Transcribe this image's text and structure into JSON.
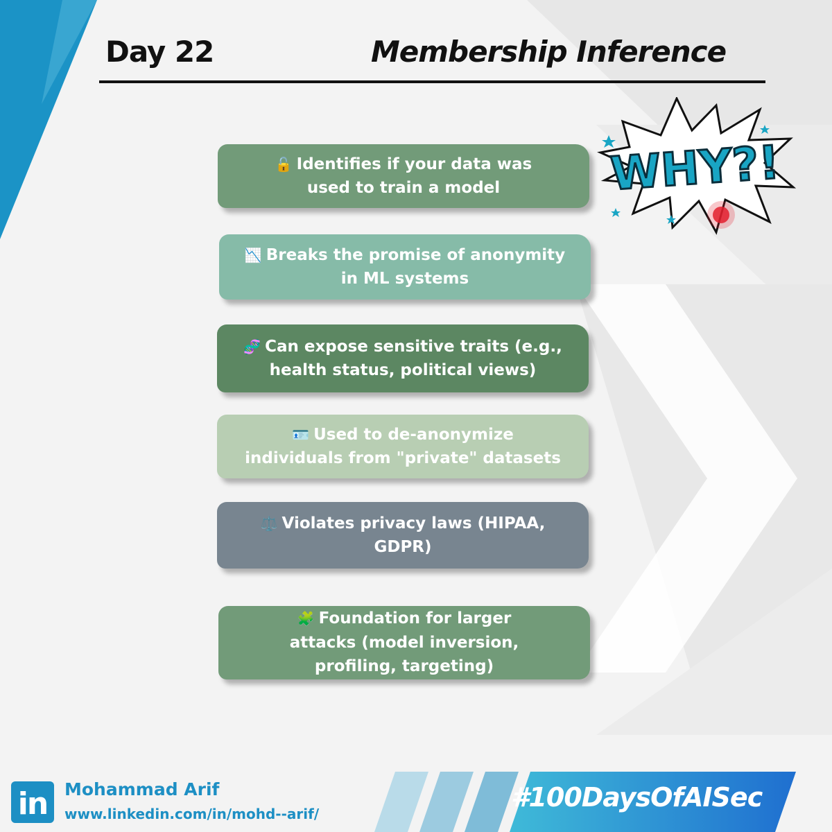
{
  "header": {
    "day_label": "Day 22",
    "title": "Membership Inference"
  },
  "badge": {
    "text": "WHY?!",
    "icon": "comic-burst-icon"
  },
  "cards": [
    {
      "icon": "🔓",
      "icon_name": "unlocked-padlock-icon",
      "text": "Identifies if your data was used to train a model",
      "color": "#729b79"
    },
    {
      "icon": "📉",
      "icon_name": "chart-decreasing-icon",
      "text": "Breaks the promise of anonymity in ML systems",
      "color": "#86bba8"
    },
    {
      "icon": "🧬",
      "icon_name": "dna-icon",
      "text": "Can expose sensitive traits (e.g., health status, political views)",
      "color": "#5c8762"
    },
    {
      "icon": "🪪",
      "icon_name": "id-card-icon",
      "text": "Used to de-anonymize individuals from \"private\" datasets",
      "color": "#b8ceb3"
    },
    {
      "icon": "⚖️",
      "icon_name": "balance-scale-icon",
      "text": "Violates privacy laws (HIPAA, GDPR)",
      "color": "#788590"
    },
    {
      "icon": "🧩",
      "icon_name": "puzzle-piece-icon",
      "text": "Foundation for larger attacks (model inversion, profiling, targeting)",
      "color": "#729b79"
    }
  ],
  "footer": {
    "logo_text": "in",
    "author_name": "Mohammad Arif",
    "author_url": "www.linkedin.com/in/mohd--arif/",
    "hashtag": "#100DaysOfAISec"
  },
  "colors": {
    "accent": "#1d8fc4",
    "badge_fill": "#19a5c4"
  }
}
